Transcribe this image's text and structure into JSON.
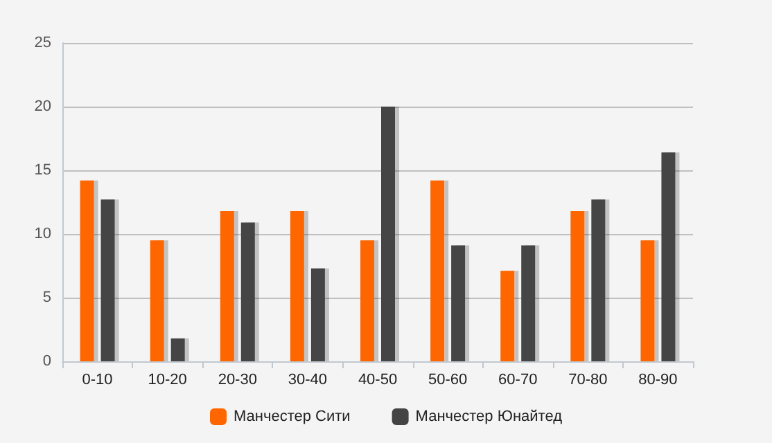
{
  "chart_data": {
    "type": "bar",
    "categories": [
      "0-10",
      "10-20",
      "20-30",
      "30-40",
      "40-50",
      "50-60",
      "60-70",
      "70-80",
      "80-90"
    ],
    "series": [
      {
        "name": "Манчестер Сити",
        "color": "#ff6600",
        "values": [
          14.2,
          9.5,
          11.8,
          11.8,
          9.5,
          14.2,
          7.1,
          11.8,
          9.5
        ]
      },
      {
        "name": "Манчестер Юнайтед",
        "color": "#444444",
        "values": [
          12.7,
          1.8,
          10.9,
          7.3,
          20,
          9.1,
          9.1,
          12.7,
          16.4
        ]
      }
    ],
    "ylim": [
      0,
      25
    ],
    "yticks": [
      0,
      5,
      10,
      15,
      20,
      25
    ],
    "grid": "y",
    "legend": "bottom"
  }
}
